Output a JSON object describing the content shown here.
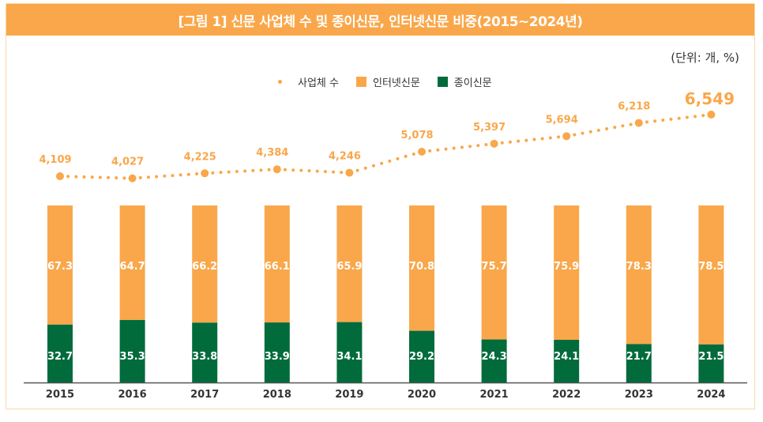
{
  "header": {
    "title": "[그림 1] 신문 사업체 수 및 종이신문, 인터넷신문 비중(2015~2024년)"
  },
  "unit_label": "(단위: 개, %)",
  "legend": [
    {
      "label": "사업체 수",
      "icon": "dot-marker-icon",
      "color": "#f9a74a"
    },
    {
      "label": "인터넷신문",
      "icon": "square-swatch-icon",
      "color": "#f9a74a"
    },
    {
      "label": "종이신문",
      "icon": "square-swatch-icon",
      "color": "#026b3c"
    }
  ],
  "colors": {
    "internet": "#f9a74a",
    "paper": "#026b3c",
    "line": "#f9a74a",
    "axis": "#555555",
    "frame": "#fbd9a8"
  },
  "chart_data": {
    "type": "bar",
    "subtype": "stacked-100-percent-with-line-overlay",
    "title": "[그림 1] 신문 사업체 수 및 종이신문, 인터넷신문 비중(2015~2024년)",
    "xlabel": "",
    "ylabel": "",
    "unit": "(단위: 개, %)",
    "categories": [
      "2015",
      "2016",
      "2017",
      "2018",
      "2019",
      "2020",
      "2021",
      "2022",
      "2023",
      "2024"
    ],
    "series": [
      {
        "name": "종이신문",
        "type": "bar",
        "stack": "share",
        "values": [
          32.7,
          35.3,
          33.8,
          33.9,
          34.1,
          29.2,
          24.3,
          24.1,
          21.7,
          21.5
        ]
      },
      {
        "name": "인터넷신문",
        "type": "bar",
        "stack": "share",
        "values": [
          67.3,
          64.7,
          66.2,
          66.1,
          65.9,
          70.8,
          75.7,
          75.9,
          78.3,
          78.5
        ]
      },
      {
        "name": "사업체 수",
        "type": "line",
        "style": "dotted",
        "values": [
          4109,
          4027,
          4225,
          4384,
          4246,
          5078,
          5397,
          5694,
          6218,
          6549
        ],
        "labels": [
          "4,109",
          "4,027",
          "4,225",
          "4,384",
          "4,246",
          "5,078",
          "5,397",
          "5,694",
          "6,218",
          "6,549"
        ]
      }
    ],
    "bar_ylim": [
      0,
      100
    ],
    "line_ylim": [
      3000,
      7000
    ],
    "grid": false,
    "legend_position": "top-center"
  }
}
